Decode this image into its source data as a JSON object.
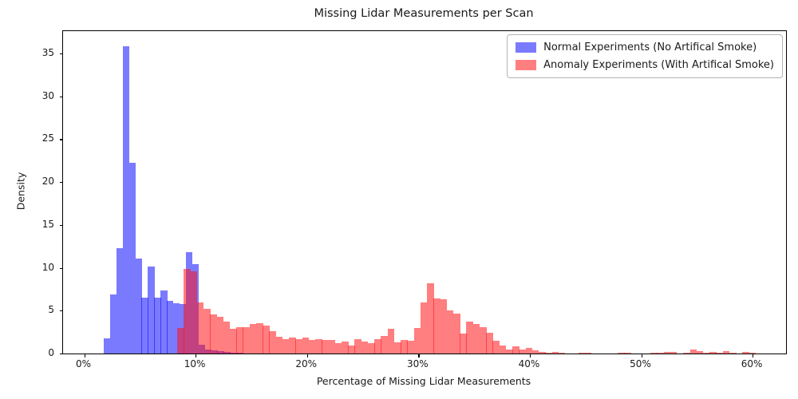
{
  "title": "Missing Lidar Measurements per Scan",
  "xlabel": "Percentage of Missing Lidar Measurements",
  "ylabel": "Density",
  "legend": {
    "items": [
      {
        "label": "Normal Experiments (No Artifical Smoke)",
        "swatch_color": "rgba(0,0,255,0.52)"
      },
      {
        "label": "Anomaly Experiments (With Artifical Smoke)",
        "swatch_color": "rgba(255,16,21,0.54)"
      }
    ]
  },
  "colors": {
    "normal_bar": "rgba(0,0,255,0.52)",
    "anomaly_bar": "rgba(255,16,21,0.54)",
    "normal_flat": "#7a7aff",
    "anomaly_flat": "#ff8080",
    "overlap_flat": "#c24181",
    "spine": "#000000"
  },
  "chart_data": {
    "type": "bar",
    "subtype": "overlaid-histograms",
    "title": "Missing Lidar Measurements per Scan",
    "xlabel": "Percentage of Missing Lidar Measurements",
    "ylabel": "Density",
    "legend_position": "upper right",
    "grid": false,
    "axes": {
      "x_range_pct": [
        -1.9,
        63.0
      ],
      "y_range": [
        0,
        37.6
      ],
      "x_tick_values_pct": [
        0,
        10,
        20,
        30,
        40,
        50,
        60
      ],
      "x_tick_labels": [
        "0%",
        "10%",
        "20%",
        "30%",
        "40%",
        "50%",
        "60%"
      ],
      "y_tick_values": [
        0,
        5,
        10,
        15,
        20,
        25,
        30,
        35
      ],
      "y_tick_labels": [
        "0",
        "5",
        "10",
        "15",
        "20",
        "25",
        "30",
        "35"
      ]
    },
    "series": [
      {
        "name": "Normal Experiments (No Artifical Smoke)",
        "color": "rgba(0,0,255,0.52)",
        "bin_start_pct": 1.75,
        "bin_width_pct": 0.567,
        "densities": [
          1.8,
          6.9,
          12.3,
          35.8,
          22.2,
          11.1,
          6.5,
          10.1,
          6.5,
          7.4,
          6.1,
          5.9,
          5.8,
          11.8,
          10.4,
          1.0,
          0.5,
          0.35,
          0.25,
          0.15,
          0.1,
          0.05
        ]
      },
      {
        "name": "Anomaly Experiments (With Artifical Smoke)",
        "color": "rgba(255,16,21,0.54)",
        "bin_start_pct": 8.35,
        "bin_width_pct": 0.59,
        "densities": [
          3.0,
          9.9,
          9.6,
          6.0,
          5.2,
          4.6,
          4.3,
          3.7,
          2.9,
          3.1,
          3.1,
          3.4,
          3.5,
          3.25,
          2.65,
          2.0,
          1.7,
          1.85,
          1.7,
          1.85,
          1.55,
          1.7,
          1.55,
          1.55,
          1.25,
          1.4,
          0.95,
          1.7,
          1.4,
          1.25,
          1.7,
          2.05,
          2.9,
          1.35,
          1.6,
          1.5,
          3.0,
          6.0,
          8.2,
          6.45,
          6.35,
          5.0,
          4.65,
          2.35,
          3.7,
          3.4,
          3.05,
          2.4,
          1.5,
          0.97,
          0.5,
          0.8,
          0.5,
          0.65,
          0.35,
          0.2,
          0.1,
          0.15,
          0.05,
          0,
          0,
          0.1,
          0.05,
          0,
          0,
          0,
          0,
          0.1,
          0.05,
          0,
          0,
          0,
          0.12,
          0.1,
          0.2,
          0.15,
          0,
          0.1,
          0.45,
          0.3,
          0.1,
          0.15,
          0.1,
          0.25,
          0.1,
          0,
          0.2,
          0.05
        ]
      }
    ]
  }
}
